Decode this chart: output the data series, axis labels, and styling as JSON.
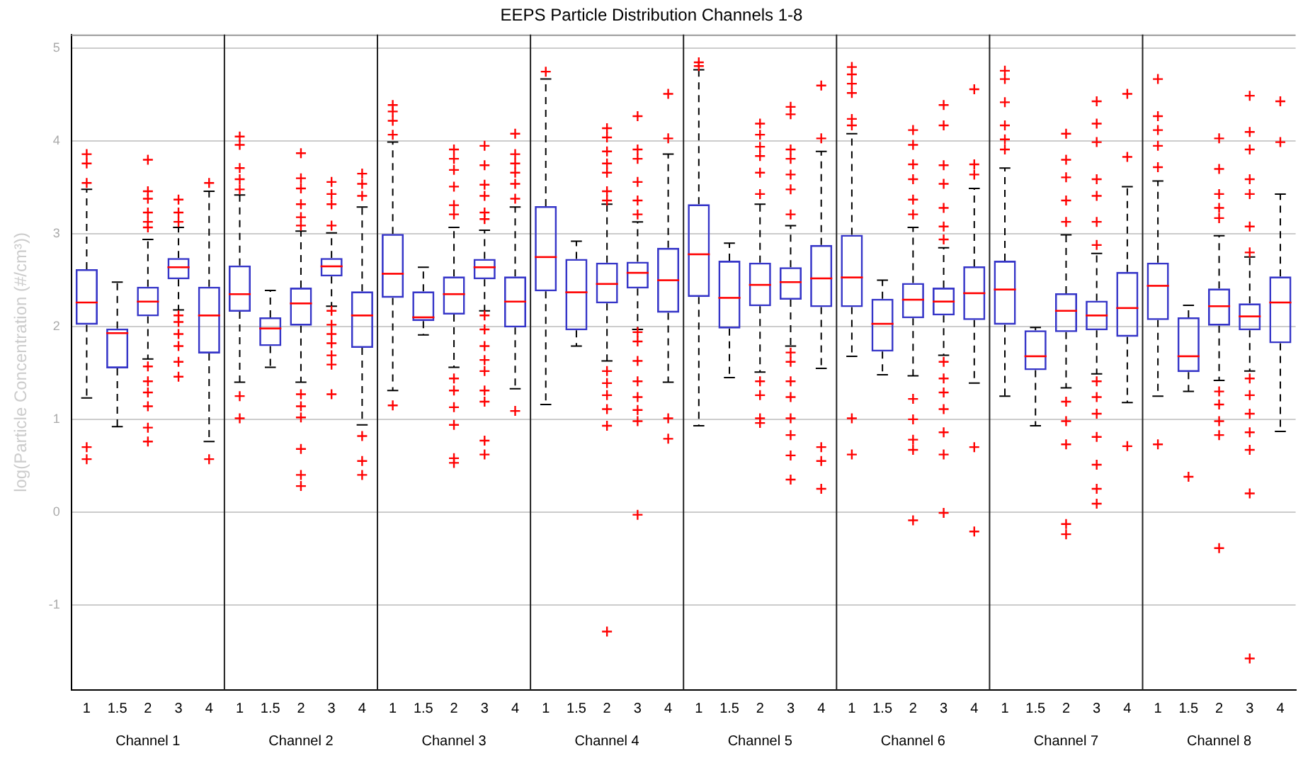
{
  "chart_data": {
    "type": "box",
    "title": "EEPS Particle Distribution Channels 1-8",
    "ylabel": "log(Particle Concentration (#/cm³))",
    "categories": [
      "1",
      "1.5",
      "2",
      "3",
      "4",
      "1",
      "1.5",
      "2",
      "3",
      "4",
      "1",
      "1.5",
      "2",
      "3",
      "4",
      "1",
      "1.5",
      "2",
      "3",
      "4",
      "1",
      "1.5",
      "2",
      "3",
      "4",
      "1",
      "1.5",
      "2",
      "3",
      "4",
      "1",
      "1.5",
      "2",
      "3",
      "4",
      "1",
      "1.5",
      "2",
      "3",
      "4"
    ],
    "annotations": [
      "Channel 1",
      "Channel 2",
      "Channel 3",
      "Channel 4",
      "Channel 5",
      "Channel 6",
      "Channel 7",
      "Channel 8"
    ],
    "color": "#3535c8",
    "boxes": [
      {
        "low": 1.23,
        "q1": 2.02,
        "median": 2.26,
        "q3": 2.62,
        "high": 3.48,
        "outliers": [
          3.86,
          3.76,
          3.55,
          0.7,
          0.57
        ]
      },
      {
        "low": 0.92,
        "q1": 1.55,
        "median": 1.93,
        "q3": 1.98,
        "high": 2.48
      },
      {
        "low": 1.65,
        "q1": 2.11,
        "median": 2.27,
        "q3": 2.43,
        "high": 2.94,
        "outliers": [
          3.8,
          3.46,
          3.38,
          3.23,
          3.13,
          3.07,
          1.57,
          1.41,
          1.29,
          1.14,
          0.91,
          0.76
        ]
      },
      {
        "low": 2.18,
        "q1": 2.51,
        "median": 2.64,
        "q3": 2.74,
        "high": 3.07,
        "outliers": [
          3.37,
          3.23,
          3.13,
          2.12,
          2.05,
          1.92,
          1.79,
          1.62,
          1.46
        ]
      },
      {
        "low": 0.76,
        "q1": 1.71,
        "median": 2.12,
        "q3": 2.43,
        "high": 3.46,
        "outliers": [
          3.55,
          0.57
        ]
      },
      {
        "low": 1.4,
        "q1": 2.16,
        "median": 2.35,
        "q3": 2.66,
        "high": 3.42,
        "outliers": [
          4.05,
          3.96,
          3.71,
          3.59,
          3.48,
          1.25,
          1.01
        ]
      },
      {
        "low": 1.56,
        "q1": 1.79,
        "median": 1.98,
        "q3": 2.1,
        "high": 2.39
      },
      {
        "low": 1.4,
        "q1": 2.01,
        "median": 2.25,
        "q3": 2.42,
        "high": 3.03,
        "outliers": [
          3.87,
          3.6,
          3.49,
          3.32,
          3.18,
          3.09,
          1.27,
          1.14,
          1.02,
          0.68,
          0.4,
          0.28
        ]
      },
      {
        "low": 2.22,
        "q1": 2.54,
        "median": 2.65,
        "q3": 2.74,
        "high": 3.01,
        "outliers": [
          3.56,
          3.43,
          3.32,
          3.09,
          2.17,
          2.02,
          1.92,
          1.82,
          1.69,
          1.59,
          1.27
        ]
      },
      {
        "low": 0.94,
        "q1": 1.77,
        "median": 2.12,
        "q3": 2.38,
        "high": 3.29,
        "outliers": [
          3.65,
          3.54,
          3.41,
          0.82,
          0.55,
          0.4
        ]
      },
      {
        "low": 1.31,
        "q1": 2.31,
        "median": 2.57,
        "q3": 3.0,
        "high": 3.99,
        "outliers": [
          4.39,
          4.32,
          4.22,
          4.07,
          1.15
        ]
      },
      {
        "low": 1.91,
        "q1": 2.06,
        "median": 2.1,
        "q3": 2.38,
        "high": 2.64
      },
      {
        "low": 1.56,
        "q1": 2.13,
        "median": 2.35,
        "q3": 2.54,
        "high": 3.07,
        "outliers": [
          3.91,
          3.81,
          3.69,
          3.51,
          3.31,
          3.21,
          1.44,
          1.31,
          1.13,
          0.94,
          0.58,
          0.53
        ]
      },
      {
        "low": 2.17,
        "q1": 2.51,
        "median": 2.64,
        "q3": 2.73,
        "high": 3.04,
        "outliers": [
          3.95,
          3.74,
          3.53,
          3.41,
          3.23,
          3.16,
          2.12,
          1.97,
          1.79,
          1.64,
          1.52,
          1.31,
          1.19,
          0.77,
          0.62
        ]
      },
      {
        "low": 1.33,
        "q1": 1.99,
        "median": 2.27,
        "q3": 2.54,
        "high": 3.29,
        "outliers": [
          4.08,
          3.86,
          3.76,
          3.66,
          3.54,
          3.38,
          1.09
        ]
      },
      {
        "low": 1.16,
        "q1": 2.38,
        "median": 2.75,
        "q3": 3.3,
        "high": 4.67,
        "outliers": [
          4.75
        ]
      },
      {
        "low": 1.79,
        "q1": 1.96,
        "median": 2.37,
        "q3": 2.73,
        "high": 2.92
      },
      {
        "low": 1.63,
        "q1": 2.25,
        "median": 2.46,
        "q3": 2.69,
        "high": 3.32,
        "outliers": [
          4.14,
          4.04,
          3.89,
          3.76,
          3.66,
          3.46,
          3.36,
          1.52,
          1.39,
          1.26,
          1.11,
          0.93,
          -1.29
        ]
      },
      {
        "low": 1.97,
        "q1": 2.41,
        "median": 2.58,
        "q3": 2.7,
        "high": 3.13,
        "outliers": [
          4.27,
          3.91,
          3.81,
          3.56,
          3.36,
          3.21,
          1.94,
          1.84,
          1.63,
          1.41,
          1.24,
          1.1,
          0.98,
          -0.03
        ]
      },
      {
        "low": 1.4,
        "q1": 2.15,
        "median": 2.5,
        "q3": 2.85,
        "high": 3.86,
        "outliers": [
          4.51,
          4.03,
          1.01,
          0.79
        ]
      },
      {
        "low": 0.93,
        "q1": 2.32,
        "median": 2.78,
        "q3": 3.32,
        "high": 4.77,
        "outliers": [
          4.85,
          4.81
        ]
      },
      {
        "low": 1.45,
        "q1": 1.98,
        "median": 2.31,
        "q3": 2.71,
        "high": 2.9
      },
      {
        "low": 1.51,
        "q1": 2.22,
        "median": 2.45,
        "q3": 2.69,
        "high": 3.32,
        "outliers": [
          4.19,
          4.07,
          3.94,
          3.84,
          3.66,
          3.43,
          1.41,
          1.26,
          1.01,
          0.96
        ]
      },
      {
        "low": 1.79,
        "q1": 2.29,
        "median": 2.48,
        "q3": 2.64,
        "high": 3.09,
        "outliers": [
          4.37,
          4.29,
          3.91,
          3.81,
          3.64,
          3.48,
          3.21,
          1.72,
          1.62,
          1.41,
          1.24,
          1.01,
          0.83,
          0.61,
          0.35
        ]
      },
      {
        "low": 1.55,
        "q1": 2.21,
        "median": 2.52,
        "q3": 2.88,
        "high": 3.89,
        "outliers": [
          4.6,
          4.03,
          0.7,
          0.55,
          0.25
        ]
      },
      {
        "low": 1.68,
        "q1": 2.21,
        "median": 2.53,
        "q3": 2.99,
        "high": 4.08,
        "outliers": [
          4.8,
          4.72,
          4.62,
          4.52,
          4.24,
          4.17,
          1.01,
          0.62
        ]
      },
      {
        "low": 1.48,
        "q1": 1.73,
        "median": 2.03,
        "q3": 2.3,
        "high": 2.5
      },
      {
        "low": 1.47,
        "q1": 2.09,
        "median": 2.29,
        "q3": 2.47,
        "high": 3.07,
        "outliers": [
          4.12,
          3.96,
          3.75,
          3.59,
          3.37,
          3.21,
          1.22,
          1.0,
          0.78,
          0.67,
          -0.09
        ]
      },
      {
        "low": 1.69,
        "q1": 2.12,
        "median": 2.27,
        "q3": 2.42,
        "high": 2.85,
        "outliers": [
          4.39,
          4.17,
          3.74,
          3.54,
          3.28,
          3.08,
          2.94,
          1.62,
          1.44,
          1.29,
          1.11,
          0.86,
          0.62,
          -0.01
        ]
      },
      {
        "low": 1.39,
        "q1": 2.07,
        "median": 2.36,
        "q3": 2.65,
        "high": 3.49,
        "outliers": [
          4.56,
          3.75,
          3.64,
          0.7,
          -0.21
        ]
      },
      {
        "low": 1.25,
        "q1": 2.02,
        "median": 2.4,
        "q3": 2.71,
        "high": 3.71,
        "outliers": [
          4.76,
          4.67,
          4.42,
          4.17,
          4.02,
          3.91
        ]
      },
      {
        "low": 0.93,
        "q1": 1.53,
        "median": 1.68,
        "q3": 1.96,
        "high": 1.99
      },
      {
        "low": 1.34,
        "q1": 1.94,
        "median": 2.17,
        "q3": 2.36,
        "high": 2.99,
        "outliers": [
          4.08,
          3.8,
          3.61,
          3.36,
          3.13,
          1.19,
          0.98,
          0.73,
          -0.13,
          -0.24
        ]
      },
      {
        "low": 1.49,
        "q1": 1.96,
        "median": 2.12,
        "q3": 2.28,
        "high": 2.79,
        "outliers": [
          4.43,
          4.19,
          3.99,
          3.59,
          3.41,
          3.13,
          2.88,
          1.41,
          1.24,
          1.06,
          0.81,
          0.51,
          0.25,
          0.09
        ]
      },
      {
        "low": 1.18,
        "q1": 1.89,
        "median": 2.2,
        "q3": 2.59,
        "high": 3.51,
        "outliers": [
          4.51,
          3.83,
          0.71
        ]
      },
      {
        "low": 1.25,
        "q1": 2.07,
        "median": 2.44,
        "q3": 2.69,
        "high": 3.57,
        "outliers": [
          4.67,
          4.27,
          4.12,
          3.95,
          3.72,
          0.73
        ]
      },
      {
        "low": 1.3,
        "q1": 1.51,
        "median": 1.68,
        "q3": 2.1,
        "high": 2.23,
        "outliers": [
          0.38
        ]
      },
      {
        "low": 1.42,
        "q1": 2.01,
        "median": 2.22,
        "q3": 2.41,
        "high": 2.98,
        "outliers": [
          4.03,
          3.7,
          3.43,
          3.28,
          3.17,
          1.3,
          1.16,
          0.98,
          0.83,
          -0.39
        ]
      },
      {
        "low": 1.52,
        "q1": 1.96,
        "median": 2.11,
        "q3": 2.25,
        "high": 2.75,
        "outliers": [
          4.49,
          4.1,
          3.91,
          3.59,
          3.43,
          3.08,
          2.8,
          1.44,
          1.26,
          1.06,
          0.86,
          0.67,
          0.2,
          -1.58
        ]
      },
      {
        "low": 0.87,
        "q1": 1.82,
        "median": 2.26,
        "q3": 2.54,
        "high": 3.43,
        "outliers": [
          4.43,
          3.99
        ]
      }
    ],
    "ylim": [
      -1.92,
      5.15
    ],
    "yticks": [
      -1,
      0,
      1,
      2,
      3,
      4,
      5
    ],
    "grid": "y",
    "marker": "cross",
    "legend": false
  }
}
